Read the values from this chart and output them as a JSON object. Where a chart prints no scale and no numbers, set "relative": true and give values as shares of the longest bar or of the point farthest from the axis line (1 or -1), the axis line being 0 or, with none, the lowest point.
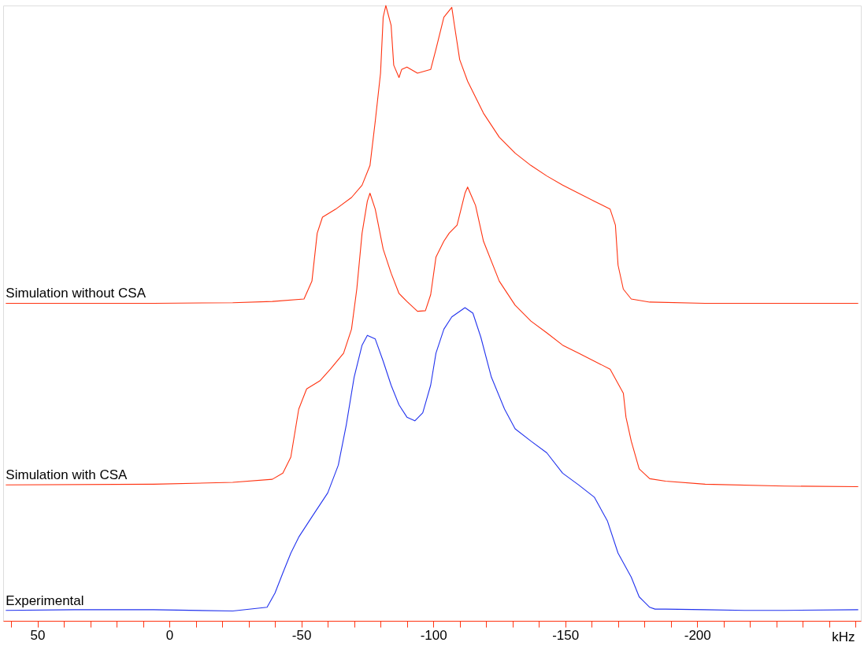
{
  "chart_data": {
    "type": "line",
    "relative": true,
    "xlabel": "kHz",
    "grid": false,
    "marker": "none",
    "line_style": "solid",
    "xlim": [
      63,
      -262
    ],
    "xticks": [
      {
        "value": 60,
        "label": null
      },
      50,
      {
        "value": 40,
        "label": null
      },
      {
        "value": 30,
        "label": null
      },
      {
        "value": 20,
        "label": null
      },
      {
        "value": 10,
        "label": null
      },
      0,
      {
        "value": -10,
        "label": null
      },
      {
        "value": -20,
        "label": null
      },
      {
        "value": -30,
        "label": null
      },
      {
        "value": -40,
        "label": null
      },
      -50,
      {
        "value": -60,
        "label": null
      },
      {
        "value": -70,
        "label": null
      },
      {
        "value": -80,
        "label": null
      },
      {
        "value": -90,
        "label": null
      },
      -100,
      {
        "value": -110,
        "label": null
      },
      {
        "value": -120,
        "label": null
      },
      {
        "value": -130,
        "label": null
      },
      {
        "value": -140,
        "label": null
      },
      -150,
      {
        "value": -160,
        "label": null
      },
      {
        "value": -170,
        "label": null
      },
      {
        "value": -180,
        "label": null
      },
      {
        "value": -190,
        "label": null
      },
      -200,
      {
        "value": -210,
        "label": null
      },
      {
        "value": -220,
        "label": null
      },
      {
        "value": -230,
        "label": null
      },
      {
        "value": -240,
        "label": null
      },
      {
        "value": -250,
        "label": null
      },
      {
        "value": -260,
        "label": null
      }
    ],
    "series": [
      {
        "name": "Simulation without CSA",
        "color": "#ff3311",
        "x": [
          62,
          6,
          -24,
          -39,
          -51,
          -54,
          -56,
          -58,
          -63,
          -69,
          -73,
          -76,
          -78,
          -80,
          -81,
          -82,
          -84,
          -85,
          -87,
          -88,
          -90,
          -94,
          -99,
          -101,
          -104,
          -107,
          -108,
          -110,
          -113,
          -119,
          -125,
          -131,
          -137,
          -143,
          -149,
          -155,
          -161,
          -167,
          -169,
          -170,
          -172,
          -175,
          -182,
          -203,
          -261
        ],
        "values": [
          0.516,
          0.516,
          0.517,
          0.519,
          0.523,
          0.552,
          0.63,
          0.656,
          0.669,
          0.688,
          0.708,
          0.74,
          0.812,
          0.89,
          0.981,
          1.0,
          0.968,
          0.903,
          0.883,
          0.896,
          0.9,
          0.89,
          0.896,
          0.929,
          0.981,
          0.997,
          0.968,
          0.912,
          0.877,
          0.825,
          0.786,
          0.76,
          0.74,
          0.723,
          0.708,
          0.695,
          0.682,
          0.669,
          0.643,
          0.578,
          0.539,
          0.523,
          0.518,
          0.516,
          0.516
        ]
      },
      {
        "name": "Simulation with CSA",
        "color": "#ff3311",
        "x": [
          62,
          6,
          -24,
          -39,
          -43,
          -46,
          -49,
          -52,
          -57,
          -61,
          -66,
          -69,
          -71,
          -73,
          -75,
          -76,
          -78,
          -81,
          -84,
          -87,
          -90,
          -94,
          -97,
          -99,
          -101,
          -104,
          -106,
          -109,
          -112,
          -113,
          -116,
          -119,
          -125,
          -131,
          -137,
          -143,
          -149,
          -155,
          -161,
          -167,
          -172,
          -173,
          -175,
          -178,
          -182,
          -188,
          -203,
          -233,
          -261
        ],
        "values": [
          0.221,
          0.222,
          0.225,
          0.23,
          0.24,
          0.266,
          0.344,
          0.377,
          0.39,
          0.409,
          0.435,
          0.474,
          0.539,
          0.63,
          0.682,
          0.695,
          0.669,
          0.604,
          0.565,
          0.532,
          0.519,
          0.503,
          0.504,
          0.53,
          0.591,
          0.617,
          0.63,
          0.643,
          0.695,
          0.705,
          0.675,
          0.617,
          0.552,
          0.513,
          0.487,
          0.468,
          0.448,
          0.435,
          0.422,
          0.409,
          0.37,
          0.331,
          0.292,
          0.247,
          0.231,
          0.227,
          0.222,
          0.219,
          0.218
        ]
      },
      {
        "name": "Experimental",
        "color": "#2233ee",
        "x": [
          62,
          36,
          6,
          -24,
          -37,
          -40,
          -43,
          -46,
          -49,
          -54,
          -60,
          -64,
          -67,
          -70,
          -73,
          -75,
          -78,
          -81,
          -84,
          -87,
          -90,
          -93,
          -96,
          -99,
          -101,
          -104,
          -107,
          -112,
          -115,
          -118,
          -122,
          -127,
          -131,
          -137,
          -143,
          -149,
          -155,
          -161,
          -166,
          -170,
          -175,
          -178,
          -182,
          -184,
          -188,
          -203,
          -218,
          -233,
          -261
        ],
        "values": [
          0.017,
          0.018,
          0.018,
          0.016,
          0.022,
          0.045,
          0.078,
          0.11,
          0.136,
          0.169,
          0.208,
          0.253,
          0.318,
          0.396,
          0.448,
          0.464,
          0.458,
          0.422,
          0.383,
          0.351,
          0.331,
          0.325,
          0.338,
          0.383,
          0.435,
          0.474,
          0.494,
          0.509,
          0.5,
          0.461,
          0.396,
          0.344,
          0.312,
          0.292,
          0.273,
          0.24,
          0.221,
          0.201,
          0.162,
          0.11,
          0.071,
          0.039,
          0.022,
          0.019,
          0.019,
          0.018,
          0.017,
          0.017,
          0.018
        ]
      }
    ]
  }
}
